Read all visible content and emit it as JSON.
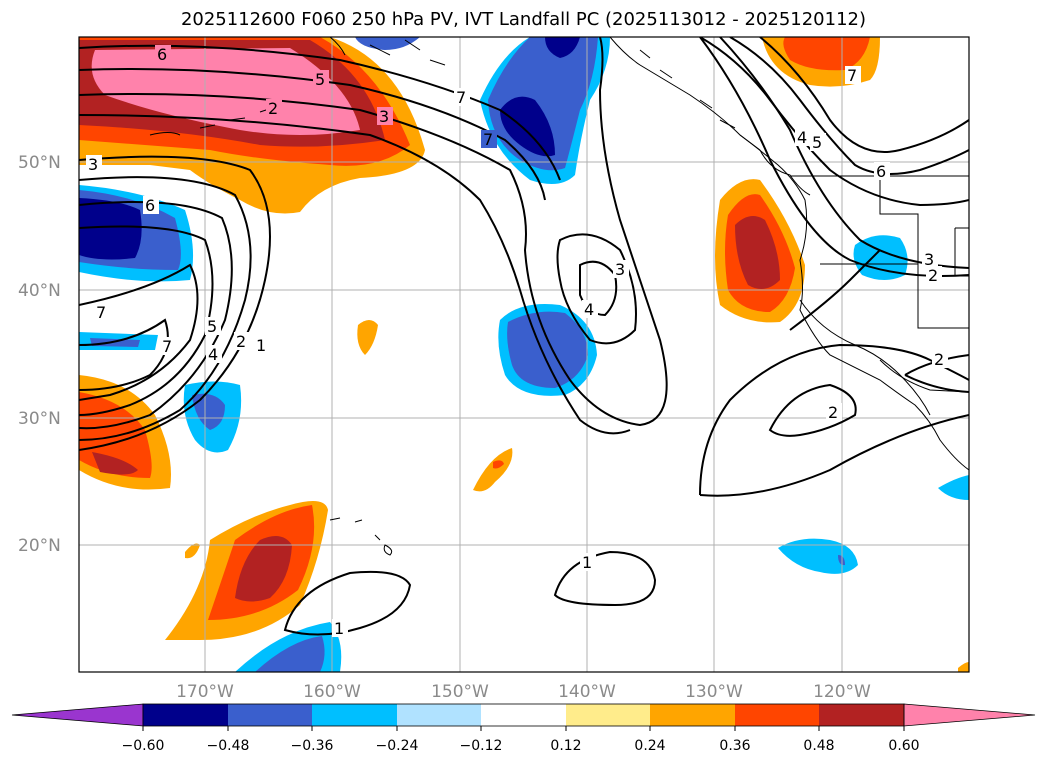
{
  "title": "2025112600 F060 250 hPa PV, IVT Landfall PC (2025113012 - 2025120112)",
  "axes": {
    "lat_labels": [
      "50°N",
      "40°N",
      "30°N",
      "20°N"
    ],
    "lon_labels": [
      "170°W",
      "160°W",
      "150°W",
      "140°W",
      "130°W",
      "120°W"
    ]
  },
  "colorbar": {
    "ticks": [
      "−0.60",
      "−0.48",
      "−0.36",
      "−0.24",
      "−0.12",
      "0.12",
      "0.24",
      "0.36",
      "0.48",
      "0.60"
    ],
    "colors": [
      "#9a35cf",
      "#00008b",
      "#3a5fcd",
      "#00bfff",
      "#b0e2ff",
      "#ffffff",
      "#ffec8b",
      "#ffa500",
      "#ff4500",
      "#b22222",
      "#ff82ab"
    ]
  },
  "contour_labels": [
    "6",
    "5",
    "2",
    "3",
    "7",
    "3",
    "6",
    "7",
    "7",
    "5",
    "4",
    "2",
    "1",
    "7",
    "3",
    "4",
    "7",
    "4",
    "5",
    "6",
    "3",
    "2",
    "2",
    "2",
    "1",
    "1"
  ]
}
